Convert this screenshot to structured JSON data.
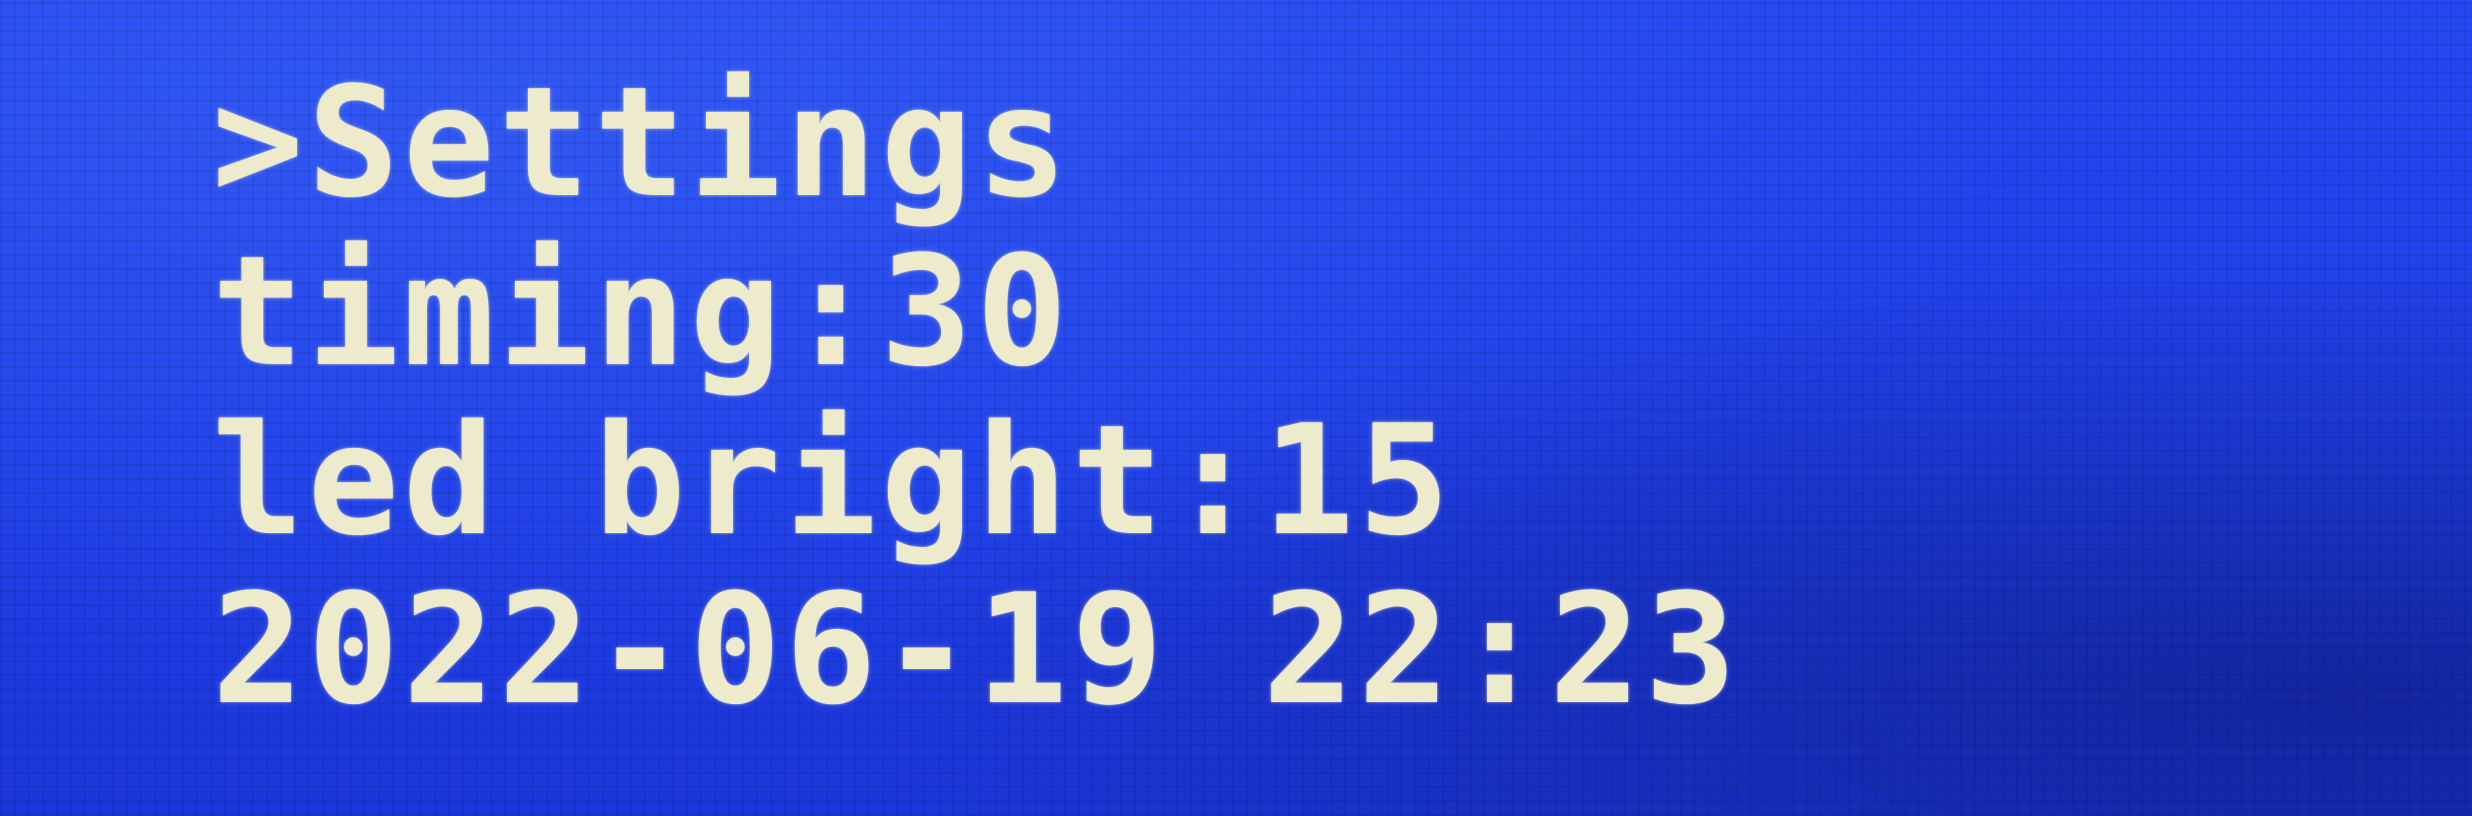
{
  "display": {
    "lines": [
      ">Settings",
      "timing:30",
      "led bright:15",
      "2022-06-19 22:23"
    ]
  },
  "colors": {
    "background": "#1f3fe8",
    "text": "#eeeacc"
  }
}
